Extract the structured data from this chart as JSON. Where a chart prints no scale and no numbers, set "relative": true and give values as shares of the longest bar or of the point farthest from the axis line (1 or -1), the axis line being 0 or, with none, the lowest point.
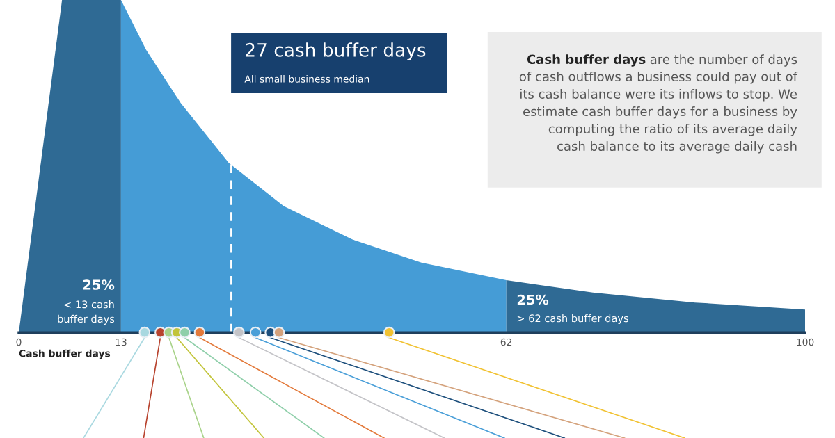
{
  "chart_data": {
    "type": "area",
    "relative": true,
    "xlabel": "Cash buffer days",
    "xlim": [
      0,
      100
    ],
    "xticks": [
      0,
      13,
      62,
      100
    ],
    "series": [
      {
        "color": "#2f6a94",
        "x": [
          0,
          5.5,
          13
        ],
        "values": [
          0,
          1.0,
          1.0
        ]
      },
      {
        "color": "#459cd6",
        "x": [
          13,
          16.2,
          20.6,
          26.7,
          33.7,
          42.4,
          51.2,
          62
        ],
        "values": [
          1.0,
          0.85,
          0.69,
          0.51,
          0.38,
          0.28,
          0.21,
          0.157
        ]
      },
      {
        "color": "#2f6a94",
        "x": [
          62,
          73,
          86,
          100
        ],
        "values": [
          0.157,
          0.12,
          0.09,
          0.069
        ]
      },
      {
        "type": "scatter",
        "marker": "circle",
        "x": [
          16.0,
          18.0,
          19.1,
          20.1,
          21.1,
          23.0,
          28.0,
          30.1,
          32.0,
          33.1,
          47.1
        ],
        "values": [
          0,
          0,
          0,
          0,
          0,
          0,
          0,
          0,
          0,
          0,
          0
        ],
        "colors": [
          "#a8d8e0",
          "#b8432e",
          "#a9d38a",
          "#c2c43a",
          "#8fcfaa",
          "#e3793a",
          "#c4c4c8",
          "#4a9fd8",
          "#1d4f7c",
          "#d4a27c",
          "#f1c232"
        ]
      }
    ],
    "ref_lines": [
      {
        "axis": "x",
        "value": 27,
        "label": "27 cash buffer days",
        "color": "#ffffff",
        "line_style": "dashed"
      }
    ],
    "annotations": [
      "25%",
      "< 13 cash\nbuffer days",
      "25%",
      "> 62 cash buffer days",
      "All small business median",
      "Cash buffer days",
      " are the number of days\nof cash outflows a business could pay out of\nits cash balance were its inflows to stop. We\nestimate cash buffer days for a business by\ncomputing the ratio of its average daily\ncash balance to its average daily cash"
    ]
  }
}
